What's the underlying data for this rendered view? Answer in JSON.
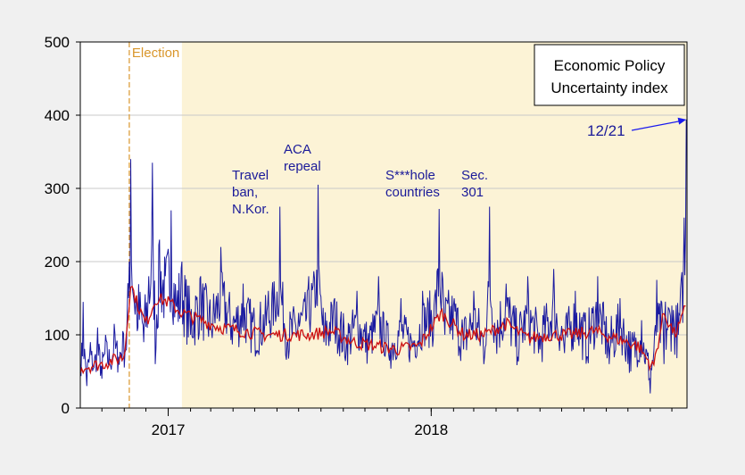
{
  "chart_data": {
    "type": "line",
    "title": "",
    "xlabel": "",
    "ylabel": "",
    "ylim": [
      0,
      500
    ],
    "yticks": [
      0,
      100,
      200,
      300,
      400,
      500
    ],
    "x_start": "2016-09-01",
    "x_end": "2018-12-22",
    "x_tick_labels": [
      {
        "label": "2017",
        "date": "2017-01-01"
      },
      {
        "label": "2018",
        "date": "2018-01-01"
      }
    ],
    "grid": true,
    "shaded_region": {
      "start": "2017-01-20",
      "end": "2018-12-22",
      "color": "#fcf3d6"
    },
    "election": {
      "label": "Election",
      "date": "2016-11-08",
      "color": "#d9962b"
    },
    "legend": {
      "lines": [
        "Economic Policy",
        "Uncertainty index"
      ],
      "position": "top-right"
    },
    "annotations": [
      {
        "lines": [
          "Travel",
          "ban,",
          "N.Kor."
        ]
      },
      {
        "lines": [
          "ACA",
          "repeal"
        ]
      },
      {
        "lines": [
          "S***hole",
          "countries"
        ]
      },
      {
        "lines": [
          "Sec.",
          "301"
        ]
      },
      {
        "lines": [
          "12/21"
        ],
        "arrow_to": {
          "date": "2018-12-21",
          "value": 394
        }
      }
    ],
    "series": [
      {
        "role": "daily",
        "color": "#1a1aa0",
        "points": [
          [
            "2016-09-01",
            60
          ],
          [
            "2016-09-05",
            145
          ],
          [
            "2016-09-10",
            30
          ],
          [
            "2016-09-15",
            90
          ],
          [
            "2016-09-20",
            55
          ],
          [
            "2016-09-25",
            110
          ],
          [
            "2016-10-01",
            40
          ],
          [
            "2016-10-06",
            100
          ],
          [
            "2016-10-12",
            60
          ],
          [
            "2016-10-18",
            115
          ],
          [
            "2016-10-24",
            70
          ],
          [
            "2016-10-30",
            105
          ],
          [
            "2016-11-04",
            80
          ],
          [
            "2016-11-08",
            200
          ],
          [
            "2016-11-10",
            340
          ],
          [
            "2016-11-14",
            150
          ],
          [
            "2016-11-20",
            110
          ],
          [
            "2016-11-28",
            90
          ],
          [
            "2016-12-05",
            180
          ],
          [
            "2016-12-10",
            335
          ],
          [
            "2016-12-14",
            60
          ],
          [
            "2016-12-20",
            230
          ],
          [
            "2016-12-28",
            180
          ],
          [
            "2017-01-05",
            270
          ],
          [
            "2017-01-12",
            140
          ],
          [
            "2017-01-20",
            200
          ],
          [
            "2017-02-01",
            100
          ],
          [
            "2017-02-15",
            180
          ],
          [
            "2017-03-01",
            110
          ],
          [
            "2017-03-15",
            220
          ],
          [
            "2017-04-01",
            120
          ],
          [
            "2017-04-15",
            170
          ],
          [
            "2017-05-01",
            110
          ],
          [
            "2017-05-20",
            160
          ],
          [
            "2017-06-05",
            275
          ],
          [
            "2017-06-15",
            90
          ],
          [
            "2017-07-01",
            130
          ],
          [
            "2017-07-15",
            180
          ],
          [
            "2017-07-28",
            305
          ],
          [
            "2017-08-05",
            90
          ],
          [
            "2017-08-20",
            150
          ],
          [
            "2017-09-05",
            80
          ],
          [
            "2017-09-20",
            160
          ],
          [
            "2017-10-05",
            90
          ],
          [
            "2017-10-20",
            180
          ],
          [
            "2017-11-05",
            80
          ],
          [
            "2017-11-20",
            150
          ],
          [
            "2017-12-05",
            90
          ],
          [
            "2017-12-20",
            160
          ],
          [
            "2018-01-05",
            140
          ],
          [
            "2018-01-12",
            272
          ],
          [
            "2018-01-20",
            100
          ],
          [
            "2018-02-01",
            140
          ],
          [
            "2018-02-15",
            80
          ],
          [
            "2018-03-01",
            160
          ],
          [
            "2018-03-15",
            60
          ],
          [
            "2018-03-23",
            275
          ],
          [
            "2018-04-01",
            100
          ],
          [
            "2018-04-15",
            170
          ],
          [
            "2018-05-01",
            70
          ],
          [
            "2018-05-15",
            180
          ],
          [
            "2018-06-01",
            80
          ],
          [
            "2018-06-20",
            190
          ],
          [
            "2018-07-05",
            75
          ],
          [
            "2018-07-20",
            160
          ],
          [
            "2018-08-05",
            70
          ],
          [
            "2018-08-20",
            180
          ],
          [
            "2018-09-05",
            60
          ],
          [
            "2018-09-20",
            150
          ],
          [
            "2018-10-05",
            50
          ],
          [
            "2018-10-20",
            120
          ],
          [
            "2018-11-01",
            20
          ],
          [
            "2018-11-10",
            175
          ],
          [
            "2018-11-20",
            60
          ],
          [
            "2018-12-01",
            140
          ],
          [
            "2018-12-10",
            100
          ],
          [
            "2018-12-18",
            260
          ],
          [
            "2018-12-21",
            394
          ]
        ]
      },
      {
        "role": "moving-average",
        "color": "#cc1111",
        "points": [
          [
            "2016-09-01",
            55
          ],
          [
            "2016-10-01",
            60
          ],
          [
            "2016-11-01",
            70
          ],
          [
            "2016-11-10",
            170
          ],
          [
            "2016-11-20",
            140
          ],
          [
            "2016-12-01",
            115
          ],
          [
            "2016-12-15",
            150
          ],
          [
            "2017-01-01",
            145
          ],
          [
            "2017-01-20",
            130
          ],
          [
            "2017-02-15",
            120
          ],
          [
            "2017-03-15",
            110
          ],
          [
            "2017-04-15",
            105
          ],
          [
            "2017-05-15",
            100
          ],
          [
            "2017-06-15",
            100
          ],
          [
            "2017-07-15",
            100
          ],
          [
            "2017-08-15",
            105
          ],
          [
            "2017-09-15",
            90
          ],
          [
            "2017-10-15",
            85
          ],
          [
            "2017-11-15",
            80
          ],
          [
            "2017-12-15",
            85
          ],
          [
            "2018-01-15",
            130
          ],
          [
            "2018-02-15",
            100
          ],
          [
            "2018-03-15",
            100
          ],
          [
            "2018-04-15",
            115
          ],
          [
            "2018-05-15",
            95
          ],
          [
            "2018-06-15",
            100
          ],
          [
            "2018-07-15",
            100
          ],
          [
            "2018-08-15",
            105
          ],
          [
            "2018-09-15",
            95
          ],
          [
            "2018-10-15",
            85
          ],
          [
            "2018-11-05",
            55
          ],
          [
            "2018-11-20",
            130
          ],
          [
            "2018-12-05",
            100
          ],
          [
            "2018-12-15",
            120
          ],
          [
            "2018-12-21",
            145
          ]
        ]
      }
    ]
  }
}
